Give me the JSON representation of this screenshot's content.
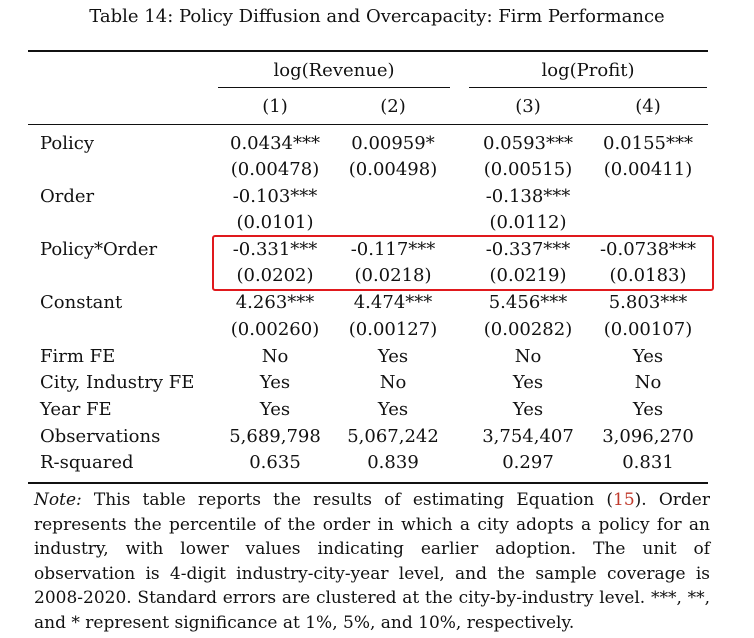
{
  "caption": "Table 14: Policy Diffusion and Overcapacity: Firm Performance",
  "groups": [
    "log(Revenue)",
    "log(Profit)"
  ],
  "columns": [
    "(1)",
    "(2)",
    "(3)",
    "(4)"
  ],
  "rows": [
    {
      "label": "Policy",
      "coef": [
        "0.0434***",
        "0.00959*",
        "0.0593***",
        "0.0155***"
      ],
      "se": [
        "(0.00478)",
        "(0.00498)",
        "(0.00515)",
        "(0.00411)"
      ]
    },
    {
      "label": "Order",
      "coef": [
        "-0.103***",
        "",
        "-0.138***",
        ""
      ],
      "se": [
        "(0.0101)",
        "",
        "(0.0112)",
        ""
      ]
    },
    {
      "label": "Policy*Order",
      "coef": [
        "-0.331***",
        "-0.117***",
        "-0.337***",
        "-0.0738***"
      ],
      "se": [
        "(0.0202)",
        "(0.0218)",
        "(0.0219)",
        "(0.0183)"
      ]
    },
    {
      "label": "Constant",
      "coef": [
        "4.263***",
        "4.474***",
        "5.456***",
        "5.803***"
      ],
      "se": [
        "(0.00260)",
        "(0.00127)",
        "(0.00282)",
        "(0.00107)"
      ]
    }
  ],
  "stats": [
    {
      "label": "Firm FE",
      "values": [
        "No",
        "Yes",
        "No",
        "Yes"
      ]
    },
    {
      "label": "City, Industry FE",
      "values": [
        "Yes",
        "No",
        "Yes",
        "No"
      ]
    },
    {
      "label": "Year FE",
      "values": [
        "Yes",
        "Yes",
        "Yes",
        "Yes"
      ]
    },
    {
      "label": "Observations",
      "values": [
        "5,689,798",
        "5,067,242",
        "3,754,407",
        "3,096,270"
      ]
    },
    {
      "label": "R-squared",
      "values": [
        "0.635",
        "0.839",
        "0.297",
        "0.831"
      ]
    }
  ],
  "note": {
    "label": "Note:",
    "text_before_ref": " This table reports the results of estimating Equation (",
    "ref": "15",
    "text_after_ref": "). Order represents the percentile of the order in which a city adopts a policy for an industry, with lower values indicating earlier adoption. The unit of observation is 4-digit industry-city-year level, and the sample coverage is 2008-2020. Standard errors are clustered at the city-by-industry level. ***, **, and * represent significance at 1%, 5%, and 10%, respectively."
  },
  "highlight_color": "#e0191d"
}
